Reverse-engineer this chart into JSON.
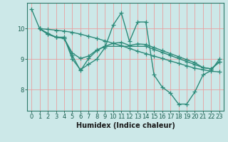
{
  "xlabel": "Humidex (Indice chaleur)",
  "ylabel": "",
  "bg_color": "#cce8e8",
  "grid_color": "#e8a0a0",
  "line_color": "#2e8b7a",
  "xlim": [
    -0.5,
    23.5
  ],
  "ylim": [
    7.3,
    10.85
  ],
  "yticks": [
    8,
    9,
    10
  ],
  "xticks": [
    0,
    1,
    2,
    3,
    4,
    5,
    6,
    7,
    8,
    9,
    10,
    11,
    12,
    13,
    14,
    15,
    16,
    17,
    18,
    19,
    20,
    21,
    22,
    23
  ],
  "lines": [
    {
      "x": [
        0,
        1,
        2,
        3,
        4,
        5,
        6,
        7,
        8,
        9,
        10,
        11,
        12,
        13,
        14,
        15,
        16,
        17,
        18,
        19,
        20,
        21,
        22,
        23
      ],
      "y": [
        10.65,
        10.0,
        9.85,
        9.72,
        9.72,
        9.0,
        8.65,
        8.83,
        9.0,
        9.38,
        10.12,
        10.52,
        9.58,
        10.22,
        10.22,
        8.48,
        8.08,
        7.88,
        7.52,
        7.52,
        7.92,
        8.48,
        8.62,
        9.0
      ]
    },
    {
      "x": [
        1,
        2,
        3,
        4,
        5,
        6,
        7,
        8,
        9,
        10,
        11,
        12,
        13,
        14,
        15,
        16,
        17,
        18,
        19,
        20,
        21,
        22,
        23
      ],
      "y": [
        10.0,
        9.98,
        9.95,
        9.92,
        9.88,
        9.82,
        9.75,
        9.68,
        9.6,
        9.52,
        9.44,
        9.35,
        9.26,
        9.18,
        9.1,
        9.02,
        8.94,
        8.86,
        8.78,
        8.7,
        8.65,
        8.6,
        8.58
      ]
    },
    {
      "x": [
        1,
        2,
        3,
        4,
        5,
        6,
        7,
        8,
        9,
        10,
        11,
        12,
        13,
        14,
        15,
        16,
        17,
        18,
        19,
        20,
        21,
        22,
        23
      ],
      "y": [
        10.0,
        9.82,
        9.72,
        9.68,
        9.2,
        9.02,
        9.1,
        9.3,
        9.42,
        9.52,
        9.55,
        9.45,
        9.5,
        9.48,
        9.38,
        9.28,
        9.18,
        9.08,
        8.98,
        8.88,
        8.72,
        8.68,
        8.9
      ]
    },
    {
      "x": [
        1,
        2,
        3,
        4,
        5,
        6,
        7,
        8,
        9,
        14,
        15,
        16,
        17,
        18,
        19,
        20,
        21,
        22,
        23
      ],
      "y": [
        10.0,
        9.82,
        9.72,
        9.68,
        9.12,
        8.62,
        9.02,
        9.28,
        9.42,
        9.42,
        9.32,
        9.22,
        9.12,
        9.02,
        8.92,
        8.82,
        8.72,
        8.68,
        8.9
      ]
    }
  ],
  "marker": "+",
  "marker_size": 4,
  "line_width": 1.0,
  "font_size_label": 7,
  "font_size_tick": 6
}
